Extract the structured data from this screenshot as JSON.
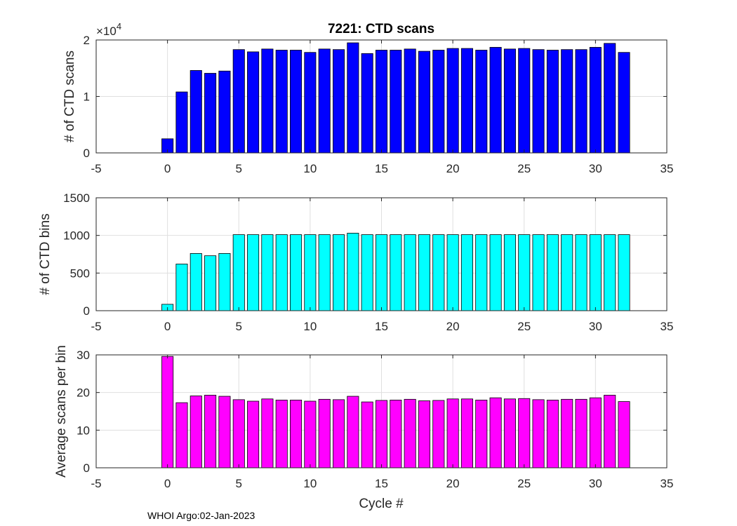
{
  "figure": {
    "title": "7221: CTD scans",
    "footer": "WHOI Argo:02-Jan-2023",
    "xlabel": "Cycle #"
  },
  "chart_data": [
    {
      "type": "bar",
      "name": "scans",
      "ylabel": "# of CTD scans",
      "color": "#0000ff",
      "xlim": [
        -5,
        35
      ],
      "xticks": [
        -5,
        0,
        5,
        10,
        15,
        20,
        25,
        30,
        35
      ],
      "xtick_labels": [
        "-5",
        "0",
        "5",
        "10",
        "15",
        "20",
        "25",
        "30",
        "35"
      ],
      "ylim": [
        0,
        20000
      ],
      "yticks": [
        0,
        10000,
        20000
      ],
      "ytick_labels": [
        "0",
        "1",
        "2"
      ],
      "exponent_label": "×10",
      "exponent_power": "4",
      "x": [
        0,
        1,
        2,
        3,
        4,
        5,
        6,
        7,
        8,
        9,
        10,
        11,
        12,
        13,
        14,
        15,
        16,
        17,
        18,
        19,
        20,
        21,
        22,
        23,
        24,
        25,
        26,
        27,
        28,
        29,
        30,
        31,
        32
      ],
      "values": [
        2500,
        10800,
        14600,
        14100,
        14500,
        18300,
        17900,
        18400,
        18200,
        18200,
        17800,
        18400,
        18300,
        19500,
        17600,
        18200,
        18200,
        18400,
        18000,
        18200,
        18500,
        18500,
        18200,
        18700,
        18400,
        18500,
        18300,
        18200,
        18300,
        18300,
        18700,
        19400,
        17800
      ]
    },
    {
      "type": "bar",
      "name": "bins",
      "ylabel": "# of CTD bins",
      "color": "#00ffff",
      "xlim": [
        -5,
        35
      ],
      "xticks": [
        -5,
        0,
        5,
        10,
        15,
        20,
        25,
        30,
        35
      ],
      "xtick_labels": [
        "-5",
        "0",
        "5",
        "10",
        "15",
        "20",
        "25",
        "30",
        "35"
      ],
      "ylim": [
        0,
        1500
      ],
      "yticks": [
        0,
        500,
        1000,
        1500
      ],
      "ytick_labels": [
        "0",
        "500",
        "1000",
        "1500"
      ],
      "x": [
        0,
        1,
        2,
        3,
        4,
        5,
        6,
        7,
        8,
        9,
        10,
        11,
        12,
        13,
        14,
        15,
        16,
        17,
        18,
        19,
        20,
        21,
        22,
        23,
        24,
        25,
        26,
        27,
        28,
        29,
        30,
        31,
        32
      ],
      "values": [
        85,
        620,
        760,
        730,
        760,
        1010,
        1010,
        1010,
        1010,
        1010,
        1010,
        1010,
        1010,
        1030,
        1010,
        1010,
        1010,
        1010,
        1010,
        1010,
        1010,
        1010,
        1010,
        1010,
        1010,
        1010,
        1010,
        1010,
        1010,
        1010,
        1010,
        1010,
        1010
      ]
    },
    {
      "type": "bar",
      "name": "ratio",
      "ylabel": "Average scans per bin",
      "color": "#ff00ff",
      "xlim": [
        -5,
        35
      ],
      "xticks": [
        -5,
        0,
        5,
        10,
        15,
        20,
        25,
        30,
        35
      ],
      "xtick_labels": [
        "-5",
        "0",
        "5",
        "10",
        "15",
        "20",
        "25",
        "30",
        "35"
      ],
      "ylim": [
        0,
        30
      ],
      "yticks": [
        0,
        10,
        20,
        30
      ],
      "ytick_labels": [
        "0",
        "10",
        "20",
        "30"
      ],
      "x": [
        0,
        1,
        2,
        3,
        4,
        5,
        6,
        7,
        8,
        9,
        10,
        11,
        12,
        13,
        14,
        15,
        16,
        17,
        18,
        19,
        20,
        21,
        22,
        23,
        24,
        25,
        26,
        27,
        28,
        29,
        30,
        31,
        32
      ],
      "values": [
        29.6,
        17.3,
        19.1,
        19.3,
        19.0,
        18.1,
        17.7,
        18.3,
        18.0,
        18.0,
        17.7,
        18.2,
        18.1,
        19.0,
        17.5,
        17.9,
        18.0,
        18.2,
        17.8,
        17.9,
        18.3,
        18.3,
        18.0,
        18.6,
        18.3,
        18.4,
        18.1,
        18.0,
        18.2,
        18.2,
        18.6,
        19.3,
        17.6
      ]
    }
  ]
}
